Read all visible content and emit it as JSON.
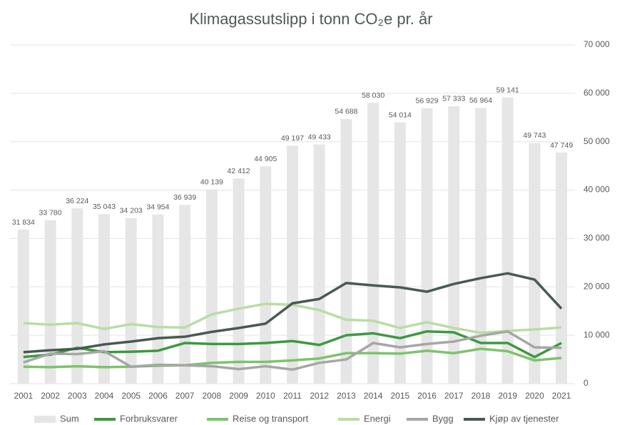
{
  "chart_data": {
    "type": "bar_line",
    "title": "Klimagassutslipp i tonn CO₂e pr. år",
    "categories": [
      "2001",
      "2002",
      "2003",
      "2004",
      "2005",
      "2006",
      "2007",
      "2008",
      "2009",
      "2010",
      "2011",
      "2012",
      "2013",
      "2014",
      "2015",
      "2016",
      "2017",
      "2018",
      "2019",
      "2020",
      "2021"
    ],
    "ylim": [
      0,
      70000
    ],
    "yticks": [
      0,
      {
        "value": 10000,
        "label": "10 000"
      },
      {
        "value": 20000,
        "label": "20 000"
      },
      {
        "value": 30000,
        "label": "30 000"
      },
      {
        "value": 40000,
        "label": "40 000"
      },
      {
        "value": 50000,
        "label": "50 000"
      },
      {
        "value": 60000,
        "label": "60 000"
      },
      {
        "value": 70000,
        "label": "70 000"
      }
    ],
    "grid": true,
    "legend": "bottom",
    "series": [
      {
        "name": "Sum",
        "type": "bar",
        "color": "#e6e6e6",
        "values": [
          31834,
          33780,
          36224,
          35043,
          34203,
          34954,
          36939,
          40139,
          42412,
          44905,
          49197,
          49433,
          54688,
          58030,
          54014,
          56929,
          57333,
          56964,
          59141,
          49743,
          47749
        ],
        "value_labels": [
          "31 834",
          "33 780",
          "36 224",
          "35 043",
          "34 203",
          "34 954",
          "36 939",
          "40 139",
          "42 412",
          "44 905",
          "49 197",
          "49 433",
          "54 688",
          "58 030",
          "54 014",
          "56 929",
          "57 333",
          "56 964",
          "59 141",
          "49 743",
          "47 749"
        ]
      },
      {
        "name": "Forbruksvarer",
        "type": "line",
        "color": "#3a9a3f",
        "values": [
          5500,
          6000,
          7400,
          6500,
          6600,
          6800,
          8400,
          8200,
          8200,
          8400,
          8800,
          8000,
          10000,
          10400,
          9400,
          10800,
          10600,
          8400,
          8400,
          5500,
          8400
        ]
      },
      {
        "name": "Reise og transport",
        "type": "line",
        "color": "#7dc36b",
        "values": [
          3500,
          3400,
          3600,
          3400,
          3500,
          3700,
          3800,
          4300,
          4500,
          4500,
          4800,
          5200,
          6300,
          6300,
          6200,
          6800,
          6300,
          7200,
          6700,
          4800,
          5300
        ]
      },
      {
        "name": "Energi",
        "type": "line",
        "color": "#b9dda3",
        "values": [
          12500,
          12200,
          12500,
          11300,
          12300,
          11700,
          11600,
          14300,
          15500,
          16500,
          16300,
          15200,
          13200,
          13000,
          11500,
          12700,
          11500,
          10500,
          10900,
          11200,
          11600
        ]
      },
      {
        "name": "Bygg",
        "type": "line",
        "color": "#a6a6a6",
        "values": [
          4400,
          6200,
          6100,
          6700,
          3500,
          3900,
          3800,
          3600,
          3000,
          3600,
          2900,
          4300,
          5000,
          8400,
          7500,
          8200,
          8700,
          9900,
          10800,
          7500,
          7400
        ]
      },
      {
        "name": "Kjøp av tjenester",
        "type": "line",
        "color": "#475a50",
        "values": [
          6500,
          6900,
          7200,
          8100,
          8700,
          9400,
          9700,
          10700,
          11500,
          12400,
          16600,
          17500,
          20800,
          20300,
          19900,
          19000,
          20600,
          21800,
          22800,
          21500,
          15500
        ]
      }
    ]
  }
}
